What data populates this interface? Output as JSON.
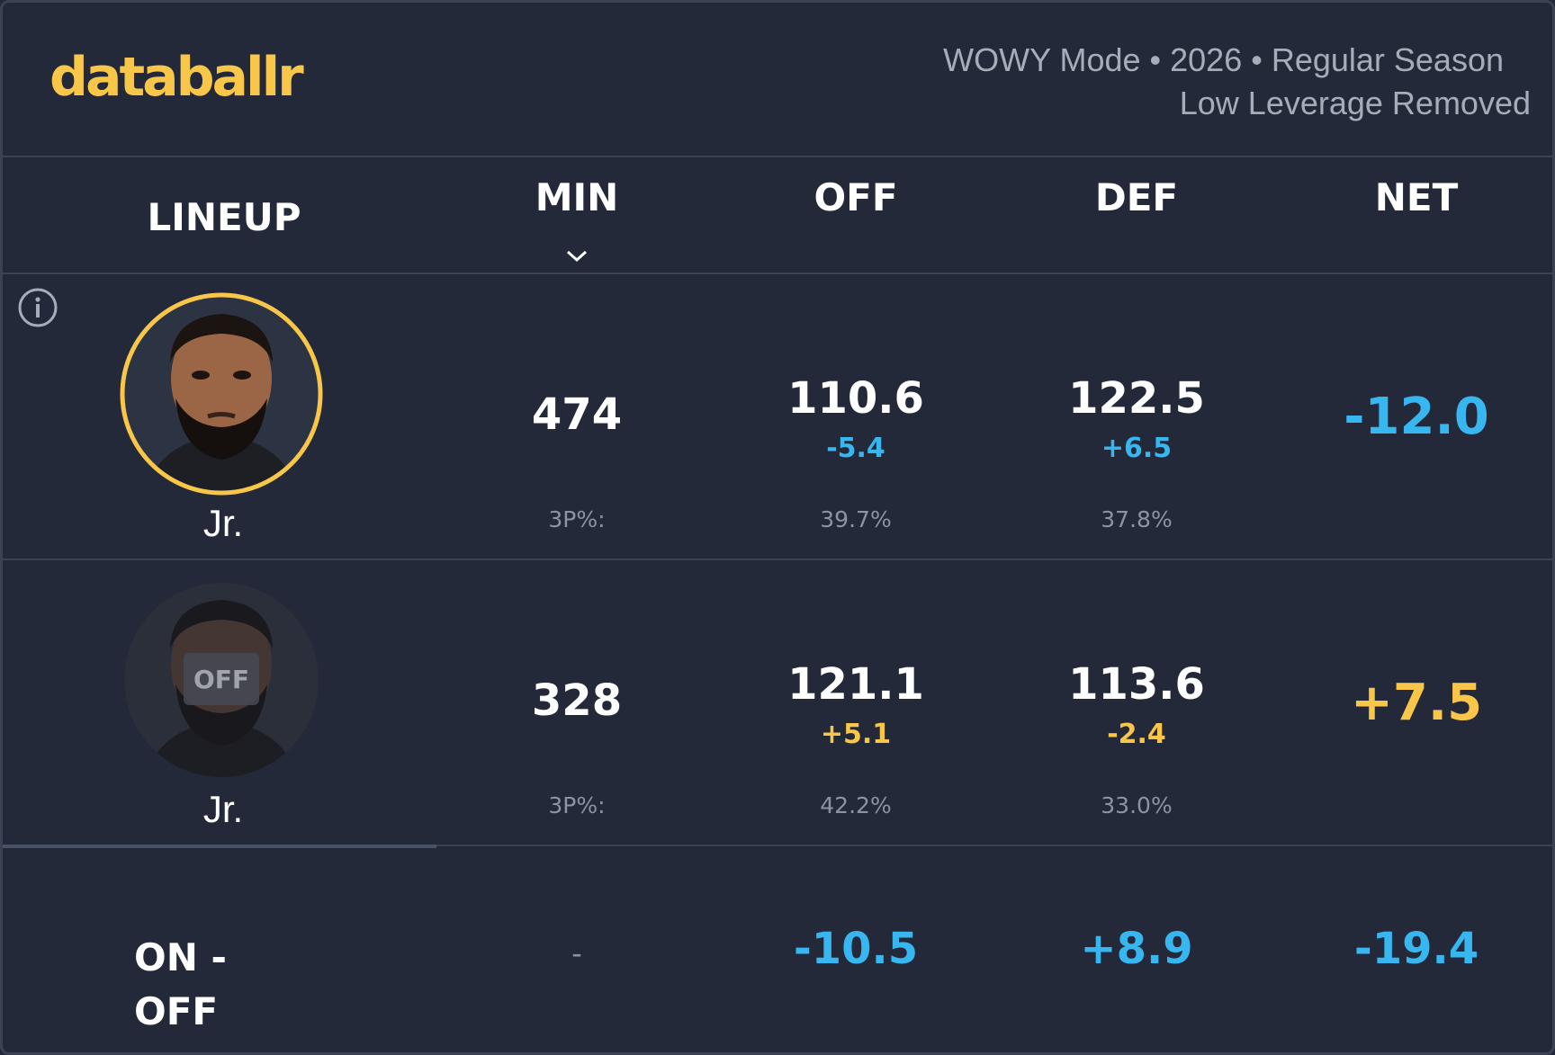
{
  "brand": {
    "logo_text": "databallr",
    "color": "#f8c74a"
  },
  "header": {
    "mode_line": "WOWY Mode • 2026 • Regular Season",
    "leverage_line": "Low Leverage Removed"
  },
  "columns": {
    "lineup": "LINEUP",
    "min": "MIN",
    "off": "OFF",
    "def": "DEF",
    "net": "NET"
  },
  "rows": [
    {
      "state": "on",
      "player_name": "Jr.",
      "min": "474",
      "off": "110.6",
      "off_delta": "-5.4",
      "def": "122.5",
      "def_delta": "+6.5",
      "net": "-12.0",
      "threep_label": "3P%:",
      "off_threep": "39.7%",
      "def_threep": "37.8%"
    },
    {
      "state": "off",
      "player_name": "Jr.",
      "badge": "OFF",
      "min": "328",
      "off": "121.1",
      "off_delta": "+5.1",
      "def": "113.6",
      "def_delta": "-2.4",
      "net": "+7.5",
      "threep_label": "3P%:",
      "off_threep": "42.2%",
      "def_threep": "33.0%"
    }
  ],
  "summary": {
    "label": "ON - OFF",
    "min": "-",
    "off": "-10.5",
    "def": "+8.9",
    "net": "-19.4"
  },
  "colors": {
    "blue": "#37b6f0",
    "gold": "#f8c74a",
    "background": "#232938"
  }
}
